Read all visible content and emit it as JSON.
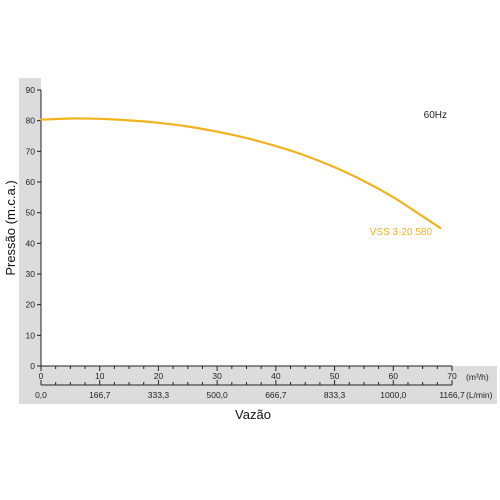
{
  "chart_data": {
    "type": "line",
    "ylabel": "Pressão (m.c.a.)",
    "xlabel": "Vazão",
    "frequency_label": "60Hz",
    "ylim": [
      0,
      90
    ],
    "xlim": [
      0,
      70
    ],
    "yticks": [
      0,
      10,
      20,
      30,
      40,
      50,
      60,
      70,
      80,
      90
    ],
    "xticks": [
      0,
      10,
      20,
      30,
      40,
      50,
      60,
      70
    ],
    "x_unit_primary": "(m³/h)",
    "x_secondary_ticks": [
      "0,0",
      "166,7",
      "333,3",
      "500,0",
      "666,7",
      "833,3",
      "1000,0",
      "1166,7"
    ],
    "x_unit_secondary": "(L/min)",
    "grid": false,
    "series": [
      {
        "name": "VSS 3-20 580",
        "color": "#F2B21C",
        "x": [
          0,
          5,
          10,
          15,
          20,
          25,
          30,
          35,
          40,
          45,
          50,
          55,
          60,
          65,
          68
        ],
        "y": [
          80.3,
          80.7,
          80.6,
          80.1,
          79.3,
          78.1,
          76.4,
          74.3,
          71.7,
          68.6,
          64.8,
          60.3,
          55.0,
          48.8,
          45.0
        ]
      }
    ]
  }
}
